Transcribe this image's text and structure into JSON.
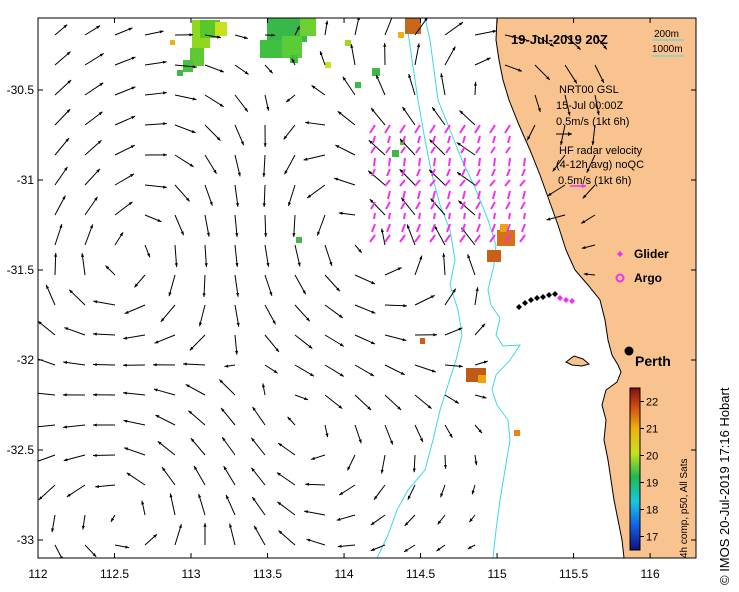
{
  "map": {
    "date": "19-Jul-2019 20Z",
    "x_ticks": [
      "112",
      "112.5",
      "113",
      "113.5",
      "114",
      "114.5",
      "115",
      "115.5",
      "116"
    ],
    "y_ticks": [
      "-30.5",
      "-31",
      "-31.5",
      "-32",
      "-32.5",
      "-33"
    ],
    "lon_range": [
      112.0,
      116.3
    ],
    "lat_range": [
      -33.1,
      -30.1
    ],
    "colors": {
      "land": "#f9c38f",
      "contour": "#3fd8e4",
      "glider": "#f032f0",
      "argo": "#f032f0",
      "arrow": "#000000"
    }
  },
  "legend": {
    "isobath_200": "200m",
    "isobath_1000": "1000m",
    "model_title": "NRT00 GSL",
    "model_time": "15-Jul 00:00Z",
    "model_scale": "0.5m/s (1kt 6h)",
    "hf_title": "HF radar velocity",
    "hf_sub": "(4-12h avg) noQC",
    "hf_scale": "0.5m/s (1kt 6h)",
    "glider_label": "Glider",
    "argo_label": "Argo",
    "city_label": "Perth"
  },
  "colorbar": {
    "ticks": [
      "17",
      "18",
      "19",
      "20",
      "21",
      "22"
    ],
    "range": [
      16.5,
      22.5
    ],
    "title": "4h comp, p50, All Sats"
  },
  "credit": "© IMOS 20-Jul-2019 17:16 Hobart"
}
